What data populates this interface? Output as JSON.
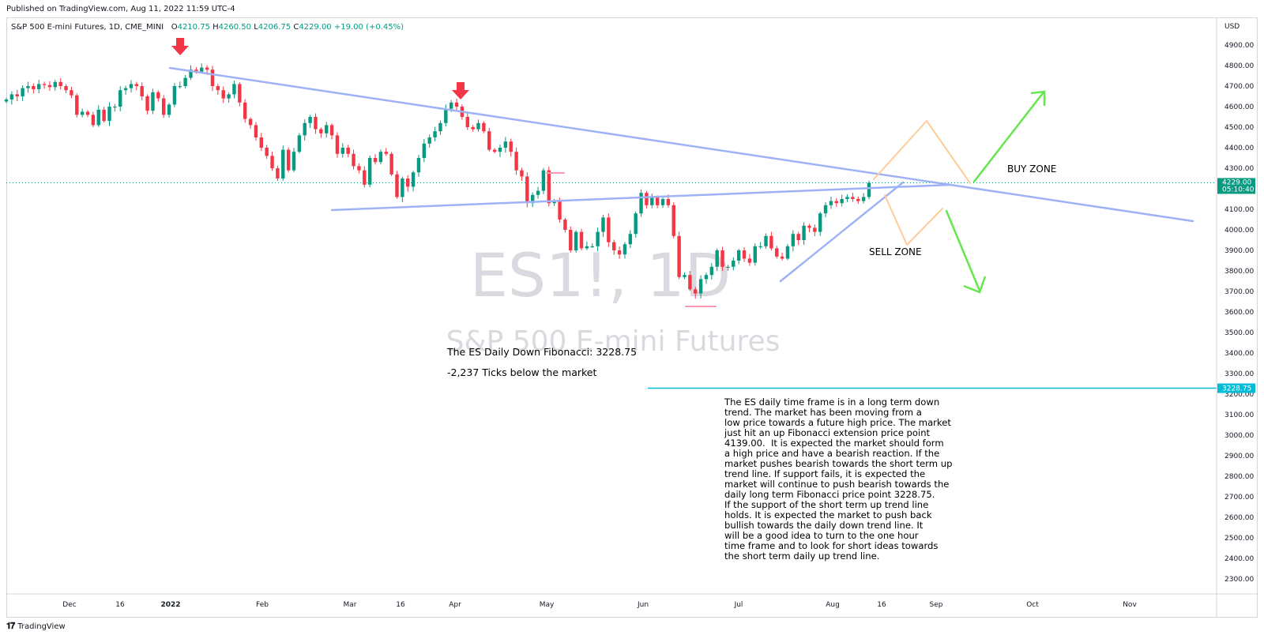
{
  "header": {
    "published": "Published on TradingView.com, Aug 11, 2022 11:59 UTC-4",
    "symbol_desc": "S&P 500 E-mini Futures, 1D, CME_MINI",
    "ohlc": {
      "o_label": "O",
      "o": "4210.75",
      "h_label": "H",
      "h": "4260.50",
      "l_label": "L",
      "l": "4206.75",
      "c_label": "C",
      "c": "4229.00",
      "change": "+19.00 (+0.45%)"
    }
  },
  "watermark": {
    "ticker": "ES1!, 1D",
    "name": "S&P 500 E-mini Futures"
  },
  "annotations": {
    "fib_title": "The ES Daily Down Fibonacci: 3228.75",
    "fib_ticks": "-2,237 Ticks below the market",
    "buy_zone": "BUY ZONE",
    "sell_zone": "SELL ZONE",
    "analysis": "The ES daily time frame is in a long term down\ntrend. The market has been moving from a\nlow price towards a future high price. The market\njust hit an up Fibonacci extension price point\n4139.00.  It is expected the market should form\na high price and have a bearish reaction. If the\nmarket pushes bearish towards the short term up\ntrend line. If support fails, it is expected the\nmarket will continue to push bearish towards the\ndaily long term Fibonacci price point 3228.75.\nIf the support of the short term up trend line\nholds. It is expected the market to push back\nbullish towards the daily down trend line. It\nwill be a good idea to turn to the one hour\ntime frame and to look for short ideas towards\nthe short term daily up trend line."
  },
  "price_axis": {
    "currency": "USD",
    "labels": [
      "4900.00",
      "4800.00",
      "4700.00",
      "4600.00",
      "4500.00",
      "4400.00",
      "4300.00",
      "4100.00",
      "4000.00",
      "3900.00",
      "3800.00",
      "3700.00",
      "3600.00",
      "3500.00",
      "3400.00",
      "3300.00",
      "3200.00",
      "3100.00",
      "3000.00",
      "2900.00",
      "2800.00",
      "2700.00",
      "2600.00",
      "2500.00",
      "2400.00",
      "2300.00"
    ],
    "last_price": "4229.00",
    "countdown": "05:10:40",
    "fib_price": "3228.75"
  },
  "time_axis": {
    "labels": [
      "Dec",
      "16",
      "2022",
      "Feb",
      "Mar",
      "16",
      "Apr",
      "May",
      "Jun",
      "Jul",
      "Aug",
      "16",
      "Sep",
      "Oct",
      "Nov"
    ]
  },
  "colors": {
    "up": "#089981",
    "down": "#f23645",
    "trendline": "#9fb2f5",
    "fib_line": "#00bcd4",
    "projection_orange": "#ffcc99",
    "projection_green": "#66e64d",
    "marker_red": "#f23645"
  },
  "footer": {
    "brand": "TradingView"
  },
  "chart_data": {
    "type": "candlestick",
    "title": "S&P 500 E-mini Futures, 1D, CME_MINI",
    "ylabel": "USD",
    "ylim": [
      2240,
      5000
    ],
    "x_ticks": [
      "Dec",
      "16",
      "2022",
      "Feb",
      "Mar",
      "16",
      "Apr",
      "May",
      "Jun",
      "Jul",
      "Aug",
      "16",
      "Sep",
      "Oct",
      "Nov"
    ],
    "series": [
      {
        "name": "ES1!",
        "values": [
          4635,
          4660,
          4650,
          4690,
          4700,
          4685,
          4710,
          4705,
          4695,
          4720,
          4700,
          4680,
          4655,
          4560,
          4575,
          4560,
          4510,
          4585,
          4530,
          4600,
          4600,
          4680,
          4690,
          4710,
          4700,
          4650,
          4580,
          4670,
          4640,
          4560,
          4610,
          4700,
          4700,
          4740,
          4780,
          4770,
          4790,
          4780,
          4700,
          4680,
          4640,
          4660,
          4710,
          4620,
          4540,
          4510,
          4450,
          4400,
          4360,
          4300,
          4250,
          4390,
          4290,
          4380,
          4460,
          4520,
          4550,
          4490,
          4470,
          4510,
          4460,
          4370,
          4400,
          4370,
          4310,
          4290,
          4220,
          4350,
          4330,
          4380,
          4370,
          4270,
          4160,
          4250,
          4210,
          4280,
          4350,
          4420,
          4450,
          4480,
          4520,
          4590,
          4620,
          4600,
          4550,
          4500,
          4490,
          4520,
          4480,
          4390,
          4380,
          4400,
          4430,
          4380,
          4290,
          4260,
          4130,
          4170,
          4190,
          4290,
          4130,
          4140,
          4050,
          4000,
          3900,
          3990,
          3910,
          3920,
          3920,
          3990,
          4060,
          3940,
          3900,
          3880,
          3930,
          3980,
          4080,
          4180,
          4120,
          4160,
          4120,
          4150,
          4120,
          3970,
          3770,
          3780,
          3710,
          3690,
          3760,
          3780,
          3820,
          3900,
          3820,
          3820,
          3850,
          3900,
          3860,
          3840,
          3920,
          3920,
          3970,
          3910,
          3870,
          3860,
          3920,
          3980,
          3950,
          4020,
          4010,
          3990,
          4080,
          4120,
          4140,
          4130,
          4150,
          4160,
          4150,
          4140,
          4160,
          4229
        ]
      }
    ],
    "levels": {
      "fibonacci_target": 3228.75,
      "fibonacci_extension": 4139.0,
      "last_close": 4229.0
    }
  }
}
